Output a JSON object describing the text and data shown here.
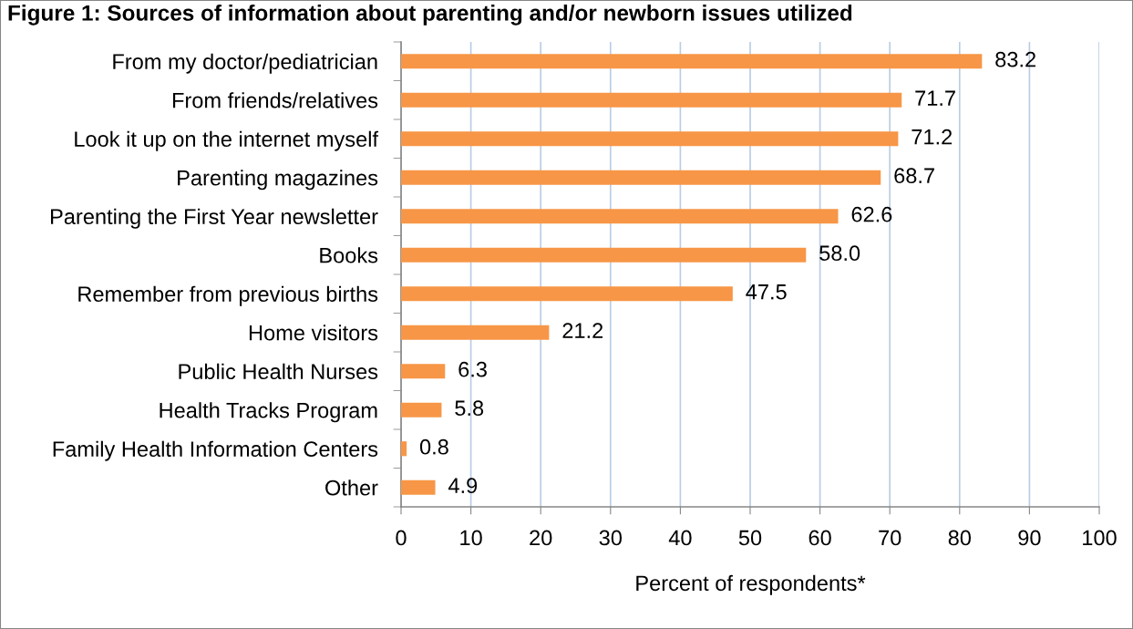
{
  "chart_data": {
    "type": "bar",
    "orientation": "horizontal",
    "title": "Figure 1: Sources of information about parenting and/or newborn issues utilized",
    "xlabel": "Percent of respondents*",
    "categories": [
      "From my doctor/pediatrician",
      "From friends/relatives",
      "Look it up on the internet myself",
      "Parenting magazines",
      "Parenting the First Year newsletter",
      "Books",
      "Remember from previous births",
      "Home visitors",
      "Public Health Nurses",
      "Health Tracks Program",
      "Family Health Information Centers",
      "Other"
    ],
    "values": [
      83.2,
      71.7,
      71.2,
      68.7,
      62.6,
      58.0,
      47.5,
      21.2,
      6.3,
      5.8,
      0.8,
      4.9
    ],
    "value_labels": [
      "83.2",
      "71.7",
      "71.2",
      "68.7",
      "62.6",
      "58.0",
      "47.5",
      "21.2",
      "6.3",
      "5.8",
      "0.8",
      "4.9"
    ],
    "color": "#f79646",
    "xlim": [
      0,
      100
    ],
    "xticks": [
      0,
      10,
      20,
      30,
      40,
      50,
      60,
      70,
      80,
      90,
      100
    ],
    "grid": "x",
    "legend": false
  }
}
